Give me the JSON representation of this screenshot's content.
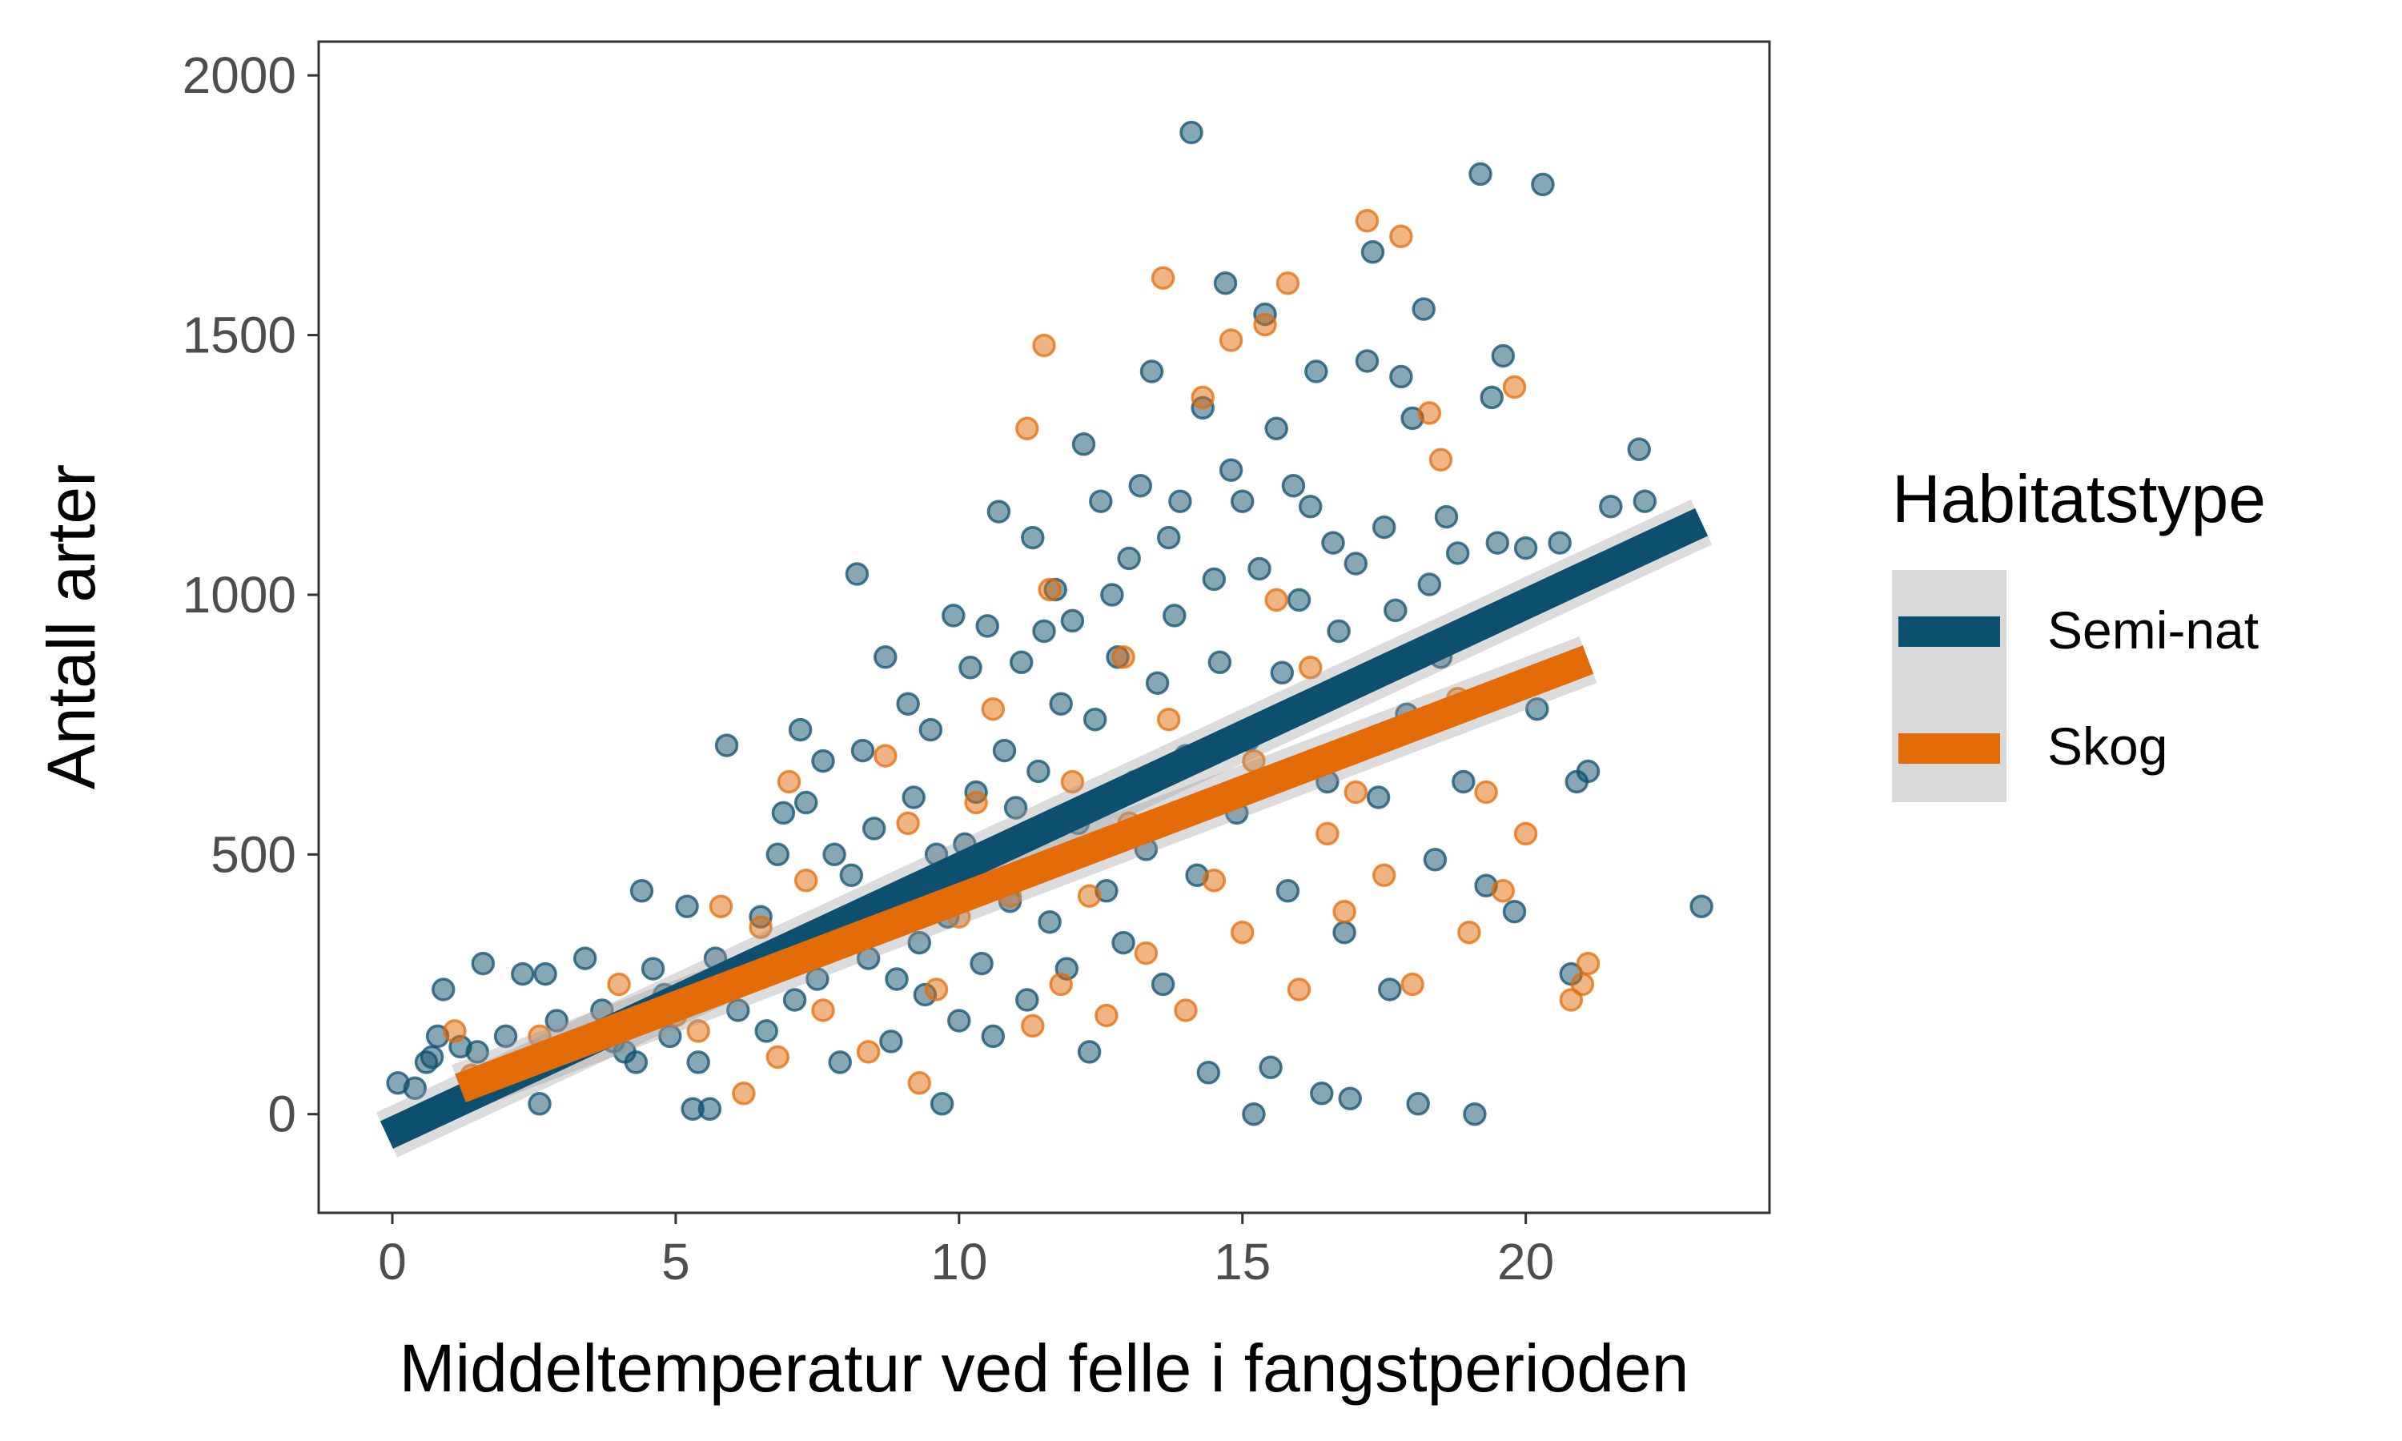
{
  "chart_data": {
    "type": "scatter",
    "xlabel": "Middeltemperatur ved felle i fangstperioden",
    "ylabel": "Antall arter",
    "xlim": [
      -1.3,
      24.3
    ],
    "ylim": [
      -190,
      2065
    ],
    "x_ticks": [
      0,
      5,
      10,
      15,
      20
    ],
    "x_tick_labels": [
      "0",
      "5",
      "10",
      "15",
      "20"
    ],
    "y_ticks": [
      0,
      500,
      1000,
      1500,
      2000
    ],
    "y_tick_labels": [
      "0",
      "500",
      "1000",
      "1500",
      "2000"
    ],
    "grid": false,
    "legend": {
      "title": "Habitatstype",
      "placement": "right",
      "entries": [
        "Semi-nat",
        "Skog"
      ]
    },
    "series": [
      {
        "name": "Semi-nat",
        "color": "#0d4f6e",
        "trend": {
          "x": [
            -0.1,
            23.1
          ],
          "y": [
            -40,
            1140
          ]
        },
        "points": [
          [
            0.1,
            60
          ],
          [
            0.4,
            50
          ],
          [
            0.6,
            100
          ],
          [
            0.8,
            150
          ],
          [
            0.9,
            240
          ],
          [
            0.7,
            110
          ],
          [
            1.2,
            130
          ],
          [
            1.5,
            120
          ],
          [
            1.6,
            290
          ],
          [
            2.0,
            150
          ],
          [
            2.3,
            270
          ],
          [
            2.7,
            270
          ],
          [
            2.6,
            20
          ],
          [
            2.9,
            180
          ],
          [
            3.2,
            130
          ],
          [
            3.4,
            300
          ],
          [
            3.7,
            200
          ],
          [
            3.9,
            140
          ],
          [
            4.1,
            120
          ],
          [
            4.3,
            100
          ],
          [
            4.4,
            430
          ],
          [
            4.6,
            280
          ],
          [
            4.8,
            230
          ],
          [
            4.9,
            150
          ],
          [
            5.2,
            400
          ],
          [
            5.3,
            10
          ],
          [
            5.4,
            100
          ],
          [
            5.6,
            10
          ],
          [
            5.7,
            300
          ],
          [
            5.8,
            240
          ],
          [
            5.9,
            710
          ],
          [
            6.1,
            200
          ],
          [
            6.3,
            290
          ],
          [
            6.5,
            380
          ],
          [
            6.6,
            160
          ],
          [
            6.8,
            500
          ],
          [
            6.9,
            580
          ],
          [
            7.1,
            220
          ],
          [
            7.2,
            740
          ],
          [
            7.3,
            600
          ],
          [
            7.5,
            260
          ],
          [
            7.6,
            680
          ],
          [
            7.8,
            500
          ],
          [
            7.9,
            100
          ],
          [
            8.1,
            460
          ],
          [
            8.2,
            1040
          ],
          [
            8.3,
            700
          ],
          [
            8.4,
            300
          ],
          [
            8.5,
            550
          ],
          [
            8.6,
            380
          ],
          [
            8.7,
            880
          ],
          [
            8.8,
            140
          ],
          [
            8.9,
            260
          ],
          [
            9.0,
            420
          ],
          [
            9.1,
            790
          ],
          [
            9.2,
            610
          ],
          [
            9.3,
            330
          ],
          [
            9.4,
            230
          ],
          [
            9.5,
            740
          ],
          [
            9.6,
            500
          ],
          [
            9.7,
            20
          ],
          [
            9.8,
            380
          ],
          [
            9.9,
            960
          ],
          [
            10.0,
            180
          ],
          [
            10.1,
            520
          ],
          [
            10.2,
            860
          ],
          [
            10.3,
            620
          ],
          [
            10.4,
            290
          ],
          [
            10.5,
            940
          ],
          [
            10.6,
            150
          ],
          [
            10.7,
            1160
          ],
          [
            10.8,
            700
          ],
          [
            10.9,
            410
          ],
          [
            11.0,
            590
          ],
          [
            11.1,
            870
          ],
          [
            11.2,
            220
          ],
          [
            11.3,
            1110
          ],
          [
            11.4,
            660
          ],
          [
            11.5,
            930
          ],
          [
            11.6,
            370
          ],
          [
            11.7,
            1010
          ],
          [
            11.8,
            790
          ],
          [
            11.9,
            280
          ],
          [
            12.0,
            950
          ],
          [
            12.1,
            560
          ],
          [
            12.2,
            1290
          ],
          [
            12.3,
            120
          ],
          [
            12.4,
            760
          ],
          [
            12.5,
            1180
          ],
          [
            12.6,
            430
          ],
          [
            12.7,
            1000
          ],
          [
            12.8,
            880
          ],
          [
            12.9,
            330
          ],
          [
            13.0,
            1070
          ],
          [
            13.1,
            640
          ],
          [
            13.2,
            1210
          ],
          [
            13.3,
            510
          ],
          [
            13.4,
            1430
          ],
          [
            13.5,
            830
          ],
          [
            13.6,
            250
          ],
          [
            13.7,
            1110
          ],
          [
            13.8,
            960
          ],
          [
            13.9,
            1180
          ],
          [
            14.0,
            690
          ],
          [
            14.1,
            1890
          ],
          [
            14.2,
            460
          ],
          [
            14.3,
            1360
          ],
          [
            14.4,
            80
          ],
          [
            14.5,
            1030
          ],
          [
            14.6,
            870
          ],
          [
            14.7,
            1600
          ],
          [
            14.8,
            1240
          ],
          [
            14.9,
            580
          ],
          [
            15.0,
            1180
          ],
          [
            15.1,
            720
          ],
          [
            15.2,
            0
          ],
          [
            15.3,
            1050
          ],
          [
            15.4,
            1540
          ],
          [
            15.5,
            90
          ],
          [
            15.6,
            1320
          ],
          [
            15.7,
            850
          ],
          [
            15.8,
            430
          ],
          [
            15.9,
            1210
          ],
          [
            16.0,
            990
          ],
          [
            16.1,
            780
          ],
          [
            16.2,
            1170
          ],
          [
            16.3,
            1430
          ],
          [
            16.4,
            40
          ],
          [
            16.5,
            640
          ],
          [
            16.6,
            1100
          ],
          [
            16.7,
            930
          ],
          [
            16.8,
            350
          ],
          [
            16.9,
            30
          ],
          [
            17.0,
            1060
          ],
          [
            17.1,
            830
          ],
          [
            17.2,
            1450
          ],
          [
            17.3,
            1660
          ],
          [
            17.4,
            610
          ],
          [
            17.5,
            1130
          ],
          [
            17.6,
            240
          ],
          [
            17.7,
            970
          ],
          [
            17.8,
            1420
          ],
          [
            17.9,
            770
          ],
          [
            18.0,
            1340
          ],
          [
            18.1,
            20
          ],
          [
            18.2,
            1550
          ],
          [
            18.3,
            1020
          ],
          [
            18.4,
            490
          ],
          [
            18.5,
            880
          ],
          [
            18.6,
            1150
          ],
          [
            18.8,
            1080
          ],
          [
            18.9,
            640
          ],
          [
            19.0,
            930
          ],
          [
            19.1,
            0
          ],
          [
            19.2,
            1810
          ],
          [
            19.3,
            440
          ],
          [
            19.4,
            1380
          ],
          [
            19.5,
            1100
          ],
          [
            19.6,
            1460
          ],
          [
            19.8,
            390
          ],
          [
            20.0,
            1090
          ],
          [
            20.2,
            780
          ],
          [
            20.3,
            1790
          ],
          [
            20.6,
            1100
          ],
          [
            20.8,
            270
          ],
          [
            20.9,
            640
          ],
          [
            21.1,
            660
          ],
          [
            21.5,
            1170
          ],
          [
            22.0,
            1280
          ],
          [
            22.1,
            1180
          ],
          [
            23.1,
            400
          ]
        ]
      },
      {
        "name": "Skog",
        "color": "#e36c09",
        "trend": {
          "x": [
            1.2,
            21.1
          ],
          "y": [
            50,
            875
          ]
        },
        "points": [
          [
            1.1,
            160
          ],
          [
            1.4,
            75
          ],
          [
            2.6,
            150
          ],
          [
            3.1,
            130
          ],
          [
            4.0,
            250
          ],
          [
            5.0,
            190
          ],
          [
            5.4,
            160
          ],
          [
            5.8,
            400
          ],
          [
            6.2,
            40
          ],
          [
            6.5,
            360
          ],
          [
            6.8,
            110
          ],
          [
            7.0,
            640
          ],
          [
            7.3,
            450
          ],
          [
            7.6,
            200
          ],
          [
            8.0,
            330
          ],
          [
            8.4,
            120
          ],
          [
            8.7,
            690
          ],
          [
            9.1,
            560
          ],
          [
            9.3,
            60
          ],
          [
            9.6,
            240
          ],
          [
            10.0,
            380
          ],
          [
            10.3,
            600
          ],
          [
            10.6,
            780
          ],
          [
            10.9,
            420
          ],
          [
            11.2,
            1320
          ],
          [
            11.3,
            170
          ],
          [
            11.5,
            1480
          ],
          [
            11.6,
            1010
          ],
          [
            11.8,
            250
          ],
          [
            12.0,
            640
          ],
          [
            12.3,
            420
          ],
          [
            12.6,
            190
          ],
          [
            12.9,
            880
          ],
          [
            13.0,
            560
          ],
          [
            13.3,
            310
          ],
          [
            13.6,
            1610
          ],
          [
            13.7,
            760
          ],
          [
            14.0,
            200
          ],
          [
            14.3,
            1380
          ],
          [
            14.5,
            450
          ],
          [
            14.8,
            1490
          ],
          [
            15.0,
            350
          ],
          [
            15.2,
            680
          ],
          [
            15.4,
            1520
          ],
          [
            15.6,
            990
          ],
          [
            15.8,
            1600
          ],
          [
            16.0,
            240
          ],
          [
            16.2,
            860
          ],
          [
            16.5,
            540
          ],
          [
            16.8,
            390
          ],
          [
            17.0,
            620
          ],
          [
            17.2,
            1720
          ],
          [
            17.5,
            460
          ],
          [
            17.8,
            1690
          ],
          [
            18.0,
            250
          ],
          [
            18.3,
            1350
          ],
          [
            18.5,
            1260
          ],
          [
            18.8,
            800
          ],
          [
            19.0,
            350
          ],
          [
            19.3,
            620
          ],
          [
            19.6,
            430
          ],
          [
            19.8,
            1400
          ],
          [
            20.0,
            540
          ],
          [
            20.8,
            220
          ],
          [
            21.0,
            250
          ],
          [
            21.1,
            290
          ]
        ]
      }
    ]
  }
}
